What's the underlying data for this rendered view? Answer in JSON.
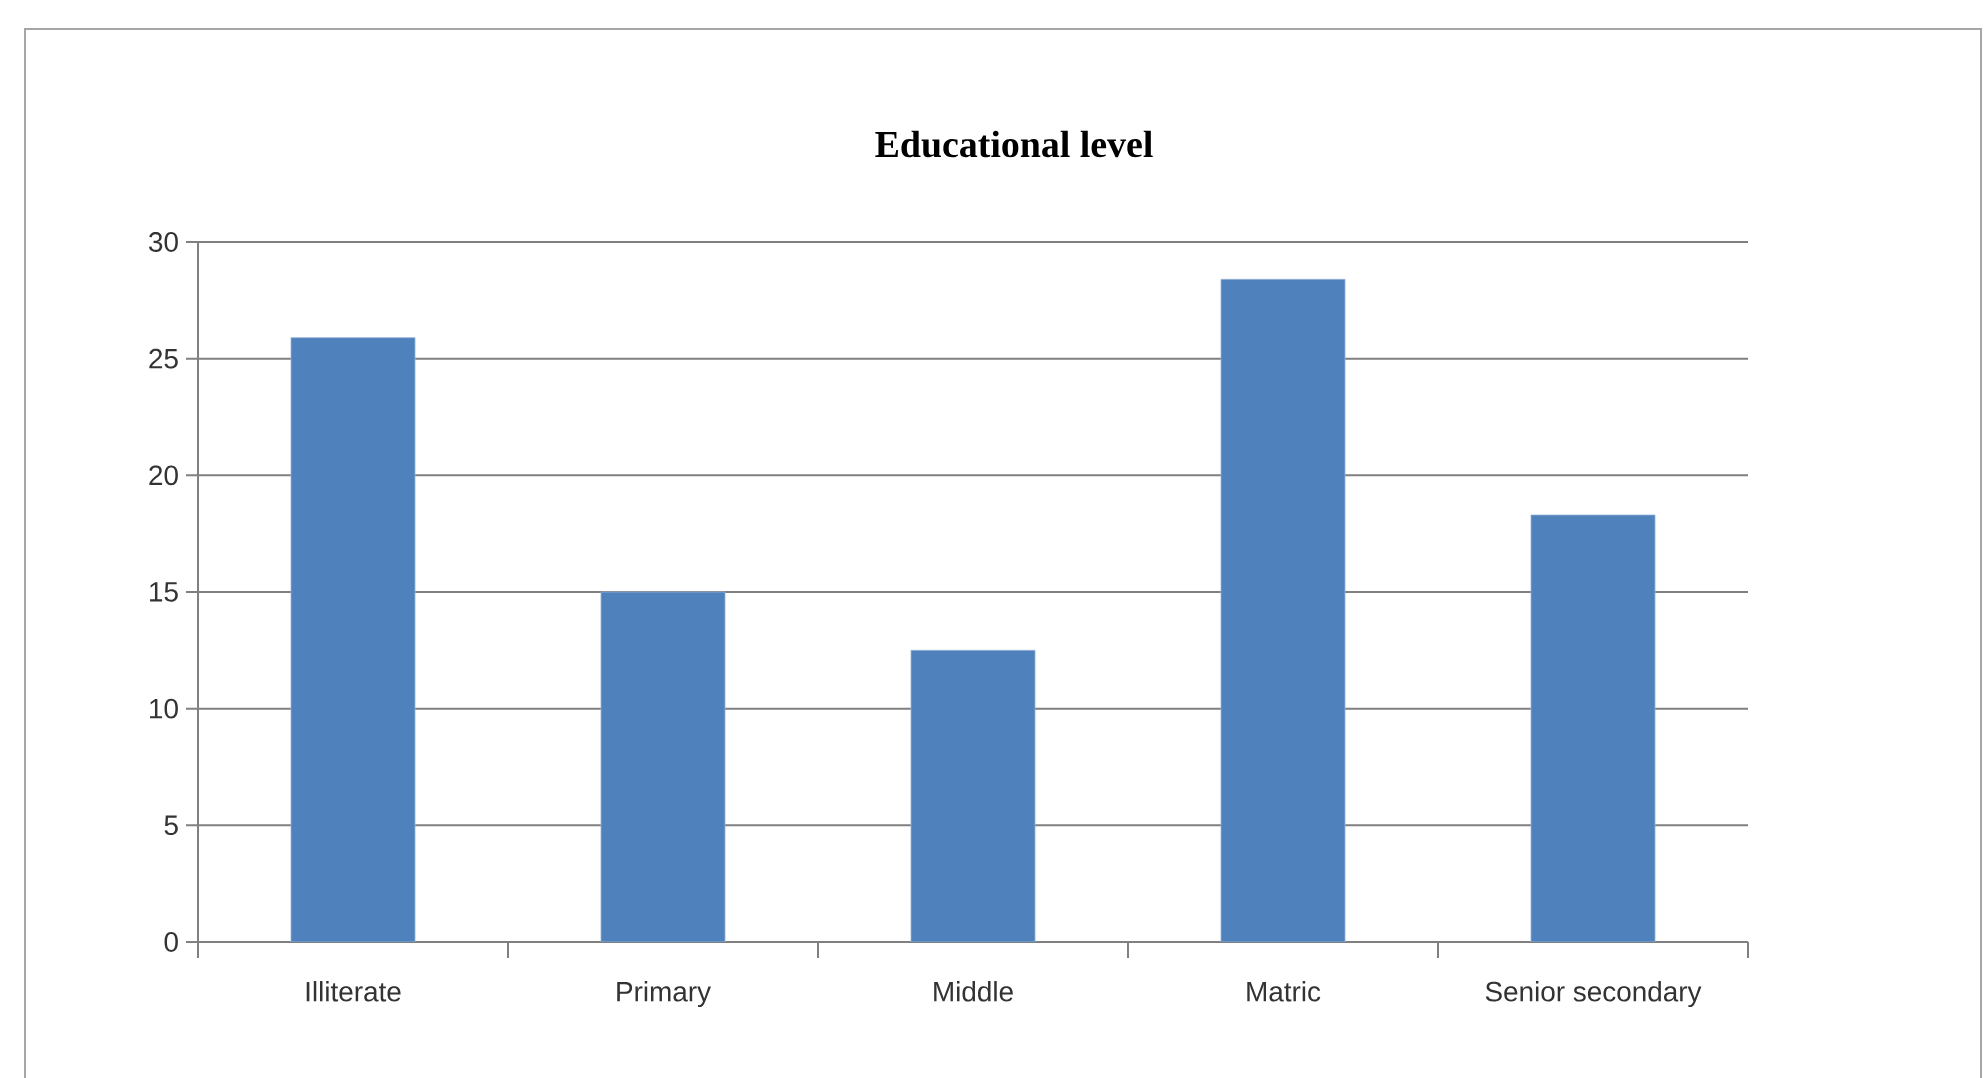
{
  "chart_data": {
    "type": "bar",
    "title": "Educational level",
    "categories": [
      "Illiterate",
      "Primary",
      "Middle",
      "Matric",
      "Senior secondary"
    ],
    "values": [
      25.9,
      15.0,
      12.5,
      28.4,
      18.3
    ],
    "color": "#4f81bd",
    "ylim": [
      0,
      30
    ],
    "yticks": [
      0,
      5,
      10,
      15,
      20,
      25,
      30
    ],
    "grid": "y"
  }
}
